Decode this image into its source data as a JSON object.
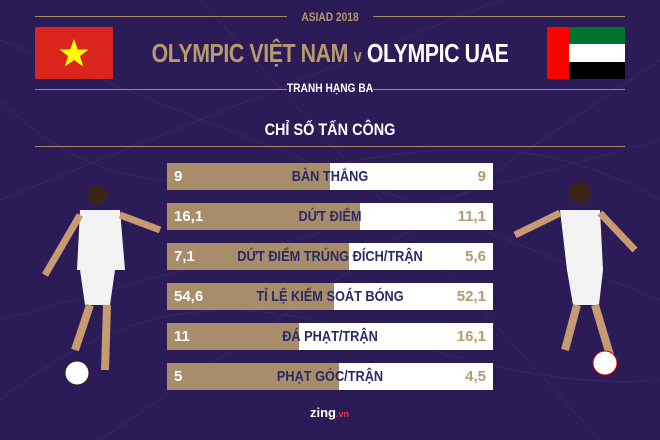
{
  "header": {
    "event": "ASIAD 2018",
    "team_left": "OLYMPIC VIỆT NAM",
    "versus": "v",
    "team_right": "OLYMPIC UAE",
    "match_stage": "TRANH HẠNG BA",
    "section_title": "CHỈ SỐ TẤN CÔNG"
  },
  "colors": {
    "background": "#2b1c57",
    "gold": "#a88d6b",
    "label": "#2b2a66",
    "vn_red": "#da251d",
    "vn_star": "#ffff00",
    "uae_green": "#00732f",
    "uae_red": "#ff0000"
  },
  "icons": {
    "left_flag": "vietnam-flag",
    "right_flag": "uae-flag"
  },
  "brand": {
    "name": "zing",
    "suffix": ".vn"
  },
  "chart_data": {
    "type": "bar",
    "categories": [
      "BÀN THẮNG",
      "DỨT ĐIỂM",
      "DỨT ĐIỂM TRÚNG ĐÍCH/TRẬN",
      "TỈ LỆ KIỂM SOÁT BÓNG",
      "ĐÁ PHẠT/TRẬN",
      "PHẠT GÓC/TRẬN"
    ],
    "series": [
      {
        "name": "OLYMPIC VIỆT NAM",
        "values": [
          9,
          16.1,
          7.1,
          54.6,
          11,
          5
        ],
        "labels": [
          "9",
          "16,1",
          "7,1",
          "54,6",
          "11",
          "5"
        ]
      },
      {
        "name": "OLYMPIC UAE",
        "values": [
          9,
          11.1,
          5.6,
          52.1,
          16.1,
          4.5
        ],
        "labels": [
          "9",
          "11,1",
          "5,6",
          "52,1",
          "16,1",
          "4,5"
        ]
      }
    ]
  }
}
